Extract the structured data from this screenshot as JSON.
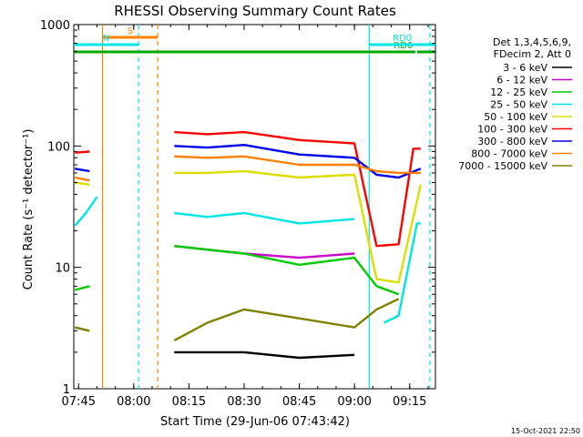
{
  "chart_data": {
    "type": "line",
    "title": "RHESSI Observing Summary Count Rates",
    "xlabel": "Start Time (29-Jun-06 07:43:42)",
    "ylabel": "Count Rate (s⁻¹ detector⁻¹)",
    "y_scale": "log",
    "ylim": [
      1,
      1000
    ],
    "xlim": [
      "07:43:42",
      "09:22:00"
    ],
    "x_ticks": [
      "07:45",
      "08:00",
      "08:15",
      "08:30",
      "08:45",
      "09:00",
      "09:15"
    ],
    "y_ticks": [
      "1",
      "10",
      "100",
      "1000"
    ],
    "legend_header": [
      "Det 1,3,4,5,6,9,",
      "FDecim 2, Att 0"
    ],
    "legend_position": "right",
    "series": [
      {
        "name": "3 - 6 keV",
        "color": "#000000",
        "x": [
          "07:45",
          "07:52",
          "08:05",
          "08:11",
          "08:30",
          "08:45",
          "09:00",
          "09:06",
          "09:12",
          "09:18"
        ],
        "y": [
          null,
          null,
          null,
          2.0,
          2.0,
          1.8,
          1.9,
          null,
          null,
          null
        ]
      },
      {
        "name": "6 - 12 keV",
        "color": "#cc00cc",
        "x": [
          "07:45",
          "07:52",
          "08:05",
          "08:11",
          "08:20",
          "08:30",
          "08:45",
          "09:00",
          "09:06",
          "09:12",
          "09:18"
        ],
        "y": [
          null,
          null,
          null,
          15,
          14,
          13,
          12,
          13,
          null,
          null,
          null
        ]
      },
      {
        "name": "12 - 25 keV",
        "color": "#00cc00",
        "x": [
          "07:44",
          "07:48",
          "07:52",
          "08:05",
          "08:11",
          "08:20",
          "08:30",
          "08:45",
          "09:00",
          "09:06",
          "09:12",
          "09:18"
        ],
        "y": [
          6.5,
          7,
          null,
          null,
          15,
          14,
          13,
          10.5,
          12,
          7,
          6,
          null
        ]
      },
      {
        "name": "25 - 50 keV",
        "color": "#00e5e5",
        "x": [
          "07:44",
          "07:47",
          "07:50",
          "07:52",
          "08:05",
          "08:11",
          "08:20",
          "08:30",
          "08:45",
          "09:00",
          "09:05",
          "09:08",
          "09:12",
          "09:17",
          "09:18"
        ],
        "y": [
          22,
          28,
          38,
          null,
          null,
          28,
          26,
          28,
          23,
          25,
          null,
          3.5,
          4,
          23,
          23
        ]
      },
      {
        "name": "50 - 100 keV",
        "color": "#dddd00",
        "x": [
          "07:44",
          "07:48",
          "07:52",
          "08:05",
          "08:11",
          "08:20",
          "08:30",
          "08:45",
          "09:00",
          "09:06",
          "09:12",
          "09:18"
        ],
        "y": [
          50,
          48,
          null,
          null,
          60,
          60,
          62,
          55,
          58,
          8,
          7.5,
          48
        ]
      },
      {
        "name": "100 - 300 keV",
        "color": "#ff0000",
        "x": [
          "07:44",
          "07:48",
          "07:52",
          "08:05",
          "08:11",
          "08:20",
          "08:30",
          "08:45",
          "09:00",
          "09:06",
          "09:12",
          "09:16",
          "09:18"
        ],
        "y": [
          88,
          90,
          null,
          null,
          130,
          125,
          130,
          112,
          105,
          15,
          15.5,
          95,
          95
        ]
      },
      {
        "name": "300 - 800 keV",
        "color": "#0000ee",
        "x": [
          "07:44",
          "07:48",
          "07:52",
          "08:05",
          "08:11",
          "08:20",
          "08:30",
          "08:45",
          "09:00",
          "09:06",
          "09:12",
          "09:18"
        ],
        "y": [
          65,
          62,
          null,
          null,
          100,
          97,
          102,
          85,
          80,
          58,
          55,
          65
        ]
      },
      {
        "name": "800 - 7000 keV",
        "color": "#ff8000",
        "x": [
          "07:44",
          "07:48",
          "07:52",
          "08:05",
          "08:11",
          "08:20",
          "08:30",
          "08:45",
          "09:00",
          "09:06",
          "09:12",
          "09:18"
        ],
        "y": [
          55,
          52,
          null,
          null,
          82,
          80,
          82,
          70,
          70,
          62,
          60,
          60
        ]
      },
      {
        "name": "7000 - 15000 keV",
        "color": "#808000",
        "x": [
          "07:44",
          "07:48",
          "07:52",
          "08:05",
          "08:11",
          "08:20",
          "08:30",
          "08:45",
          "09:00",
          "09:06",
          "09:12",
          "09:18"
        ],
        "y": [
          3.2,
          3.0,
          null,
          null,
          2.5,
          3.5,
          4.5,
          3.8,
          3.2,
          4.5,
          5.5,
          null
        ]
      }
    ],
    "flags": [
      {
        "label": "S",
        "color": "#ff8000",
        "start": "07:51:30",
        "end": "08:06:30",
        "level": 0.965
      },
      {
        "label": "N",
        "color": "#00e5e5",
        "start": "07:43:42",
        "end": "08:01:20",
        "level": 0.945
      },
      {
        "label": "",
        "color": "#00aa00",
        "start": "07:43:42",
        "end": "09:16:30",
        "level": 0.925
      },
      {
        "label": "RD6",
        "color": "#00aa00",
        "start": "09:10:00",
        "end": "09:16:30",
        "level": 0.925
      },
      {
        "label": "RD0",
        "color": "#00e5e5",
        "start": "09:04:00",
        "end": "09:22:00",
        "level": 0.945
      },
      {
        "label": "",
        "color": "#00aa00",
        "start": "09:17:00",
        "end": "09:22:00",
        "level": 0.925
      }
    ],
    "markers": [
      {
        "time": "07:51:30",
        "color": "#ff8000",
        "style": "solid"
      },
      {
        "time": "08:01:20",
        "color": "#00e5e5",
        "style": "dashed"
      },
      {
        "time": "08:06:30",
        "color": "#ff8000",
        "style": "dashed"
      },
      {
        "time": "09:04:00",
        "color": "#00e5e5",
        "style": "solid"
      },
      {
        "time": "09:20:30",
        "color": "#00e5e5",
        "style": "dashed"
      }
    ],
    "timestamp": "15-Oct-2021 22:50"
  }
}
